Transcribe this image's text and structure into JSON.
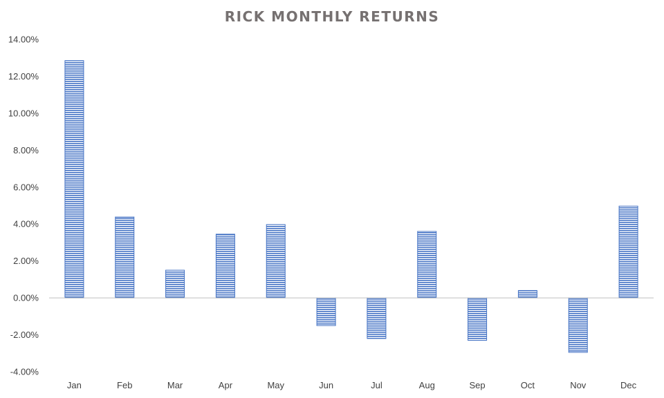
{
  "chart_data": {
    "type": "bar",
    "title": "RICK MONTHLY RETURNS",
    "xlabel": "",
    "ylabel": "",
    "categories": [
      "Jan",
      "Feb",
      "Mar",
      "Apr",
      "May",
      "Jun",
      "Jul",
      "Aug",
      "Sep",
      "Oct",
      "Nov",
      "Dec"
    ],
    "values": [
      12.85,
      4.38,
      1.5,
      3.45,
      3.97,
      -1.5,
      -2.2,
      3.6,
      -2.3,
      0.4,
      -2.95,
      4.97
    ],
    "ylim": [
      -4,
      14
    ],
    "yticks": [
      "-4.00%",
      "-2.00%",
      "0.00%",
      "2.00%",
      "4.00%",
      "6.00%",
      "8.00%",
      "10.00%",
      "12.00%",
      "14.00%"
    ],
    "grid": false,
    "legend": "none",
    "bar_color": "#4472C4",
    "bar_pattern": "horizontal-stripes"
  }
}
